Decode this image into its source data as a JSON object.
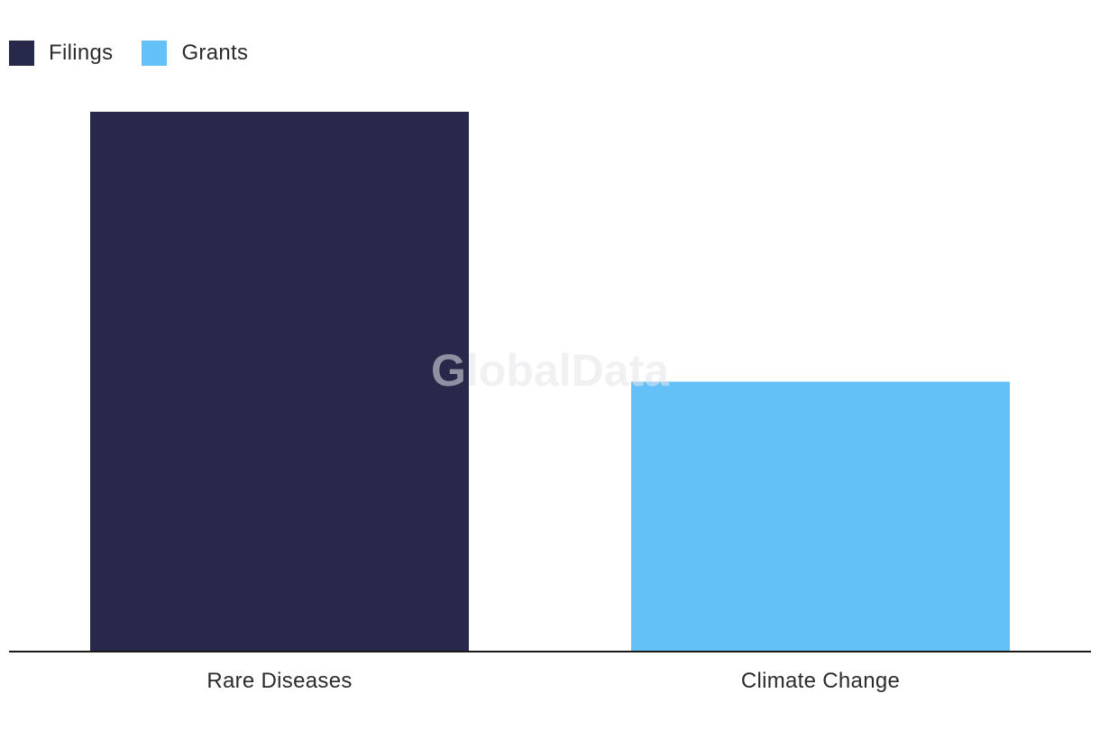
{
  "watermark": "GlobalData",
  "chart_data": {
    "type": "bar",
    "categories": [
      "Rare Diseases",
      "Climate Change"
    ],
    "series": [
      {
        "name": "Filings",
        "color": "#28284a",
        "values": [
          2,
          null
        ]
      },
      {
        "name": "Grants",
        "color": "#63c1f8",
        "values": [
          null,
          1
        ]
      }
    ],
    "title": "",
    "xlabel": "",
    "ylabel": "",
    "ylim": [
      0,
      2
    ],
    "grid": false,
    "legend": "top-left"
  }
}
